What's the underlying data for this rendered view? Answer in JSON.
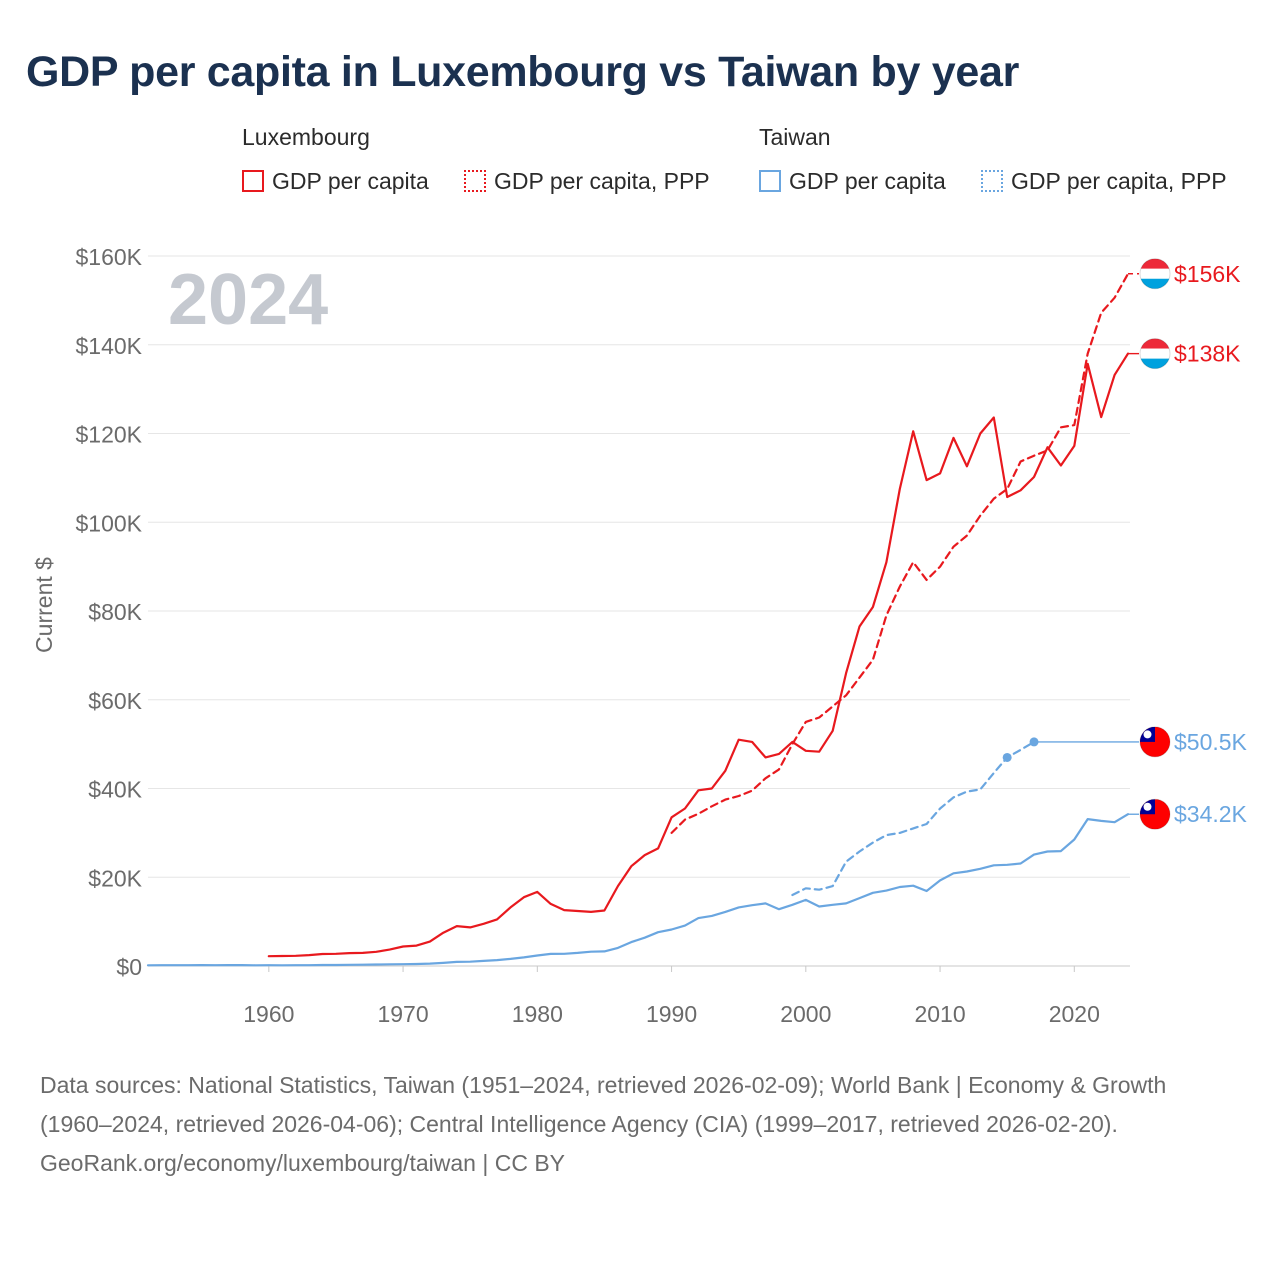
{
  "title": "GDP per capita in Luxembourg vs Taiwan by year",
  "year_label": "2024",
  "legend": {
    "groups": [
      {
        "name": "Luxembourg",
        "color": "#e8191e",
        "items": [
          {
            "label": "GDP per capita",
            "style": "solid"
          },
          {
            "label": "GDP per capita, PPP",
            "style": "dotted"
          }
        ]
      },
      {
        "name": "Taiwan",
        "color": "#6aa6e0",
        "items": [
          {
            "label": "GDP per capita",
            "style": "solid"
          },
          {
            "label": "GDP per capita, PPP",
            "style": "dotted"
          }
        ]
      }
    ]
  },
  "footer": {
    "sources": "Data sources: National Statistics, Taiwan (1951–2024, retrieved 2026-02-09); World Bank | Economy & Growth (1960–2024, retrieved 2026-04-06); Central Intelligence Agency (CIA) (1999–2017, retrieved 2026-02-20).",
    "credit": "GeoRank.org/economy/luxembourg/taiwan | CC BY"
  },
  "chart_data": {
    "type": "line",
    "title": "GDP per capita in Luxembourg vs Taiwan by year",
    "ylabel": "Current $",
    "xlabel": "",
    "xlim": [
      1951,
      2024
    ],
    "ylim": [
      0,
      160000
    ],
    "x_ticks": [
      1960,
      1970,
      1980,
      1990,
      2000,
      2010,
      2020
    ],
    "y_ticks": [
      0,
      20000,
      40000,
      60000,
      80000,
      100000,
      120000,
      140000,
      160000
    ],
    "y_tick_labels": [
      "$0",
      "$20K",
      "$40K",
      "$60K",
      "$80K",
      "$100K",
      "$120K",
      "$140K",
      "$160K"
    ],
    "series": [
      {
        "name": "Luxembourg GDP per capita",
        "country": "Luxembourg",
        "color": "#e8191e",
        "dash": "solid",
        "end_label": "$138K",
        "x": [
          1960,
          1961,
          1962,
          1963,
          1964,
          1965,
          1966,
          1967,
          1968,
          1969,
          1970,
          1971,
          1972,
          1973,
          1974,
          1975,
          1976,
          1977,
          1978,
          1979,
          1980,
          1981,
          1982,
          1983,
          1984,
          1985,
          1986,
          1987,
          1988,
          1989,
          1990,
          1991,
          1992,
          1993,
          1994,
          1995,
          1996,
          1997,
          1998,
          1999,
          2000,
          2001,
          2002,
          2003,
          2004,
          2005,
          2006,
          2007,
          2008,
          2009,
          2010,
          2011,
          2012,
          2013,
          2014,
          2015,
          2016,
          2017,
          2018,
          2019,
          2020,
          2021,
          2022,
          2023,
          2024
        ],
        "values": [
          2200,
          2250,
          2300,
          2450,
          2700,
          2750,
          2900,
          2950,
          3200,
          3700,
          4400,
          4600,
          5500,
          7500,
          9000,
          8700,
          9500,
          10500,
          13200,
          15500,
          16700,
          14000,
          12600,
          12400,
          12200,
          12500,
          18000,
          22500,
          25000,
          26500,
          33500,
          35500,
          39600,
          40000,
          44000,
          51000,
          50500,
          47000,
          47800,
          50500,
          48500,
          48300,
          53000,
          66000,
          76500,
          80900,
          91000,
          107500,
          120500,
          109500,
          111000,
          119000,
          112600,
          120000,
          123600,
          105700,
          107200,
          110200,
          116900,
          112800,
          117200,
          135700,
          123700,
          133200,
          138000
        ]
      },
      {
        "name": "Luxembourg GDP per capita, PPP",
        "country": "Luxembourg",
        "color": "#e8191e",
        "dash": "dashed",
        "end_label": "$156K",
        "x": [
          1990,
          1991,
          1992,
          1993,
          1994,
          1995,
          1996,
          1997,
          1998,
          1999,
          2000,
          2001,
          2002,
          2003,
          2004,
          2005,
          2006,
          2007,
          2008,
          2009,
          2010,
          2011,
          2012,
          2013,
          2014,
          2015,
          2016,
          2017,
          2018,
          2019,
          2020,
          2021,
          2022,
          2023,
          2024
        ],
        "values": [
          30000,
          33000,
          34300,
          36000,
          37500,
          38300,
          39500,
          42300,
          44300,
          50000,
          55000,
          56000,
          58500,
          61000,
          65000,
          69000,
          79000,
          85500,
          91000,
          87000,
          90000,
          94500,
          97000,
          101500,
          105300,
          107500,
          113700,
          115000,
          116200,
          121400,
          121900,
          138000,
          147200,
          150600,
          156000
        ]
      },
      {
        "name": "Taiwan GDP per capita",
        "country": "Taiwan",
        "color": "#6aa6e0",
        "dash": "solid",
        "end_label": "$34.2K",
        "x": [
          1951,
          1952,
          1953,
          1954,
          1955,
          1956,
          1957,
          1958,
          1959,
          1960,
          1961,
          1962,
          1963,
          1964,
          1965,
          1966,
          1967,
          1968,
          1969,
          1970,
          1971,
          1972,
          1973,
          1974,
          1975,
          1976,
          1977,
          1978,
          1979,
          1980,
          1981,
          1982,
          1983,
          1984,
          1985,
          1986,
          1987,
          1988,
          1989,
          1990,
          1991,
          1992,
          1993,
          1994,
          1995,
          1996,
          1997,
          1998,
          1999,
          2000,
          2001,
          2002,
          2003,
          2004,
          2005,
          2006,
          2007,
          2008,
          2009,
          2010,
          2011,
          2012,
          2013,
          2014,
          2015,
          2016,
          2017,
          2018,
          2019,
          2020,
          2021,
          2022,
          2023,
          2024
        ],
        "values": [
          150,
          170,
          180,
          180,
          200,
          190,
          200,
          210,
          160,
          170,
          160,
          170,
          190,
          220,
          230,
          260,
          300,
          340,
          390,
          400,
          450,
          530,
          700,
          920,
          980,
          1150,
          1330,
          1600,
          1930,
          2360,
          2720,
          2750,
          2950,
          3230,
          3300,
          4070,
          5390,
          6370,
          7620,
          8220,
          9100,
          10800,
          11300,
          12200,
          13200,
          13700,
          14100,
          12800,
          13800,
          14900,
          13400,
          13800,
          14100,
          15300,
          16500,
          17000,
          17800,
          18100,
          16900,
          19300,
          20900,
          21300,
          21900,
          22700,
          22800,
          23100,
          25100,
          25800,
          25900,
          28500,
          33100,
          32700,
          32400,
          34200
        ]
      },
      {
        "name": "Taiwan GDP per capita, PPP",
        "country": "Taiwan",
        "color": "#6aa6e0",
        "dash": "dashed",
        "end_label": "$50.5K",
        "x": [
          1999,
          2000,
          2001,
          2002,
          2003,
          2004,
          2005,
          2006,
          2007,
          2008,
          2009,
          2010,
          2011,
          2012,
          2013,
          2014,
          2015,
          2016,
          2017
        ],
        "values": [
          16000,
          17500,
          17200,
          18000,
          23500,
          25800,
          27800,
          29500,
          30000,
          31000,
          32000,
          35500,
          38000,
          39300,
          39800,
          43500,
          47000,
          48700,
          50500
        ],
        "dot_years": [
          2015,
          2017
        ],
        "extend_to": 2024
      }
    ]
  }
}
